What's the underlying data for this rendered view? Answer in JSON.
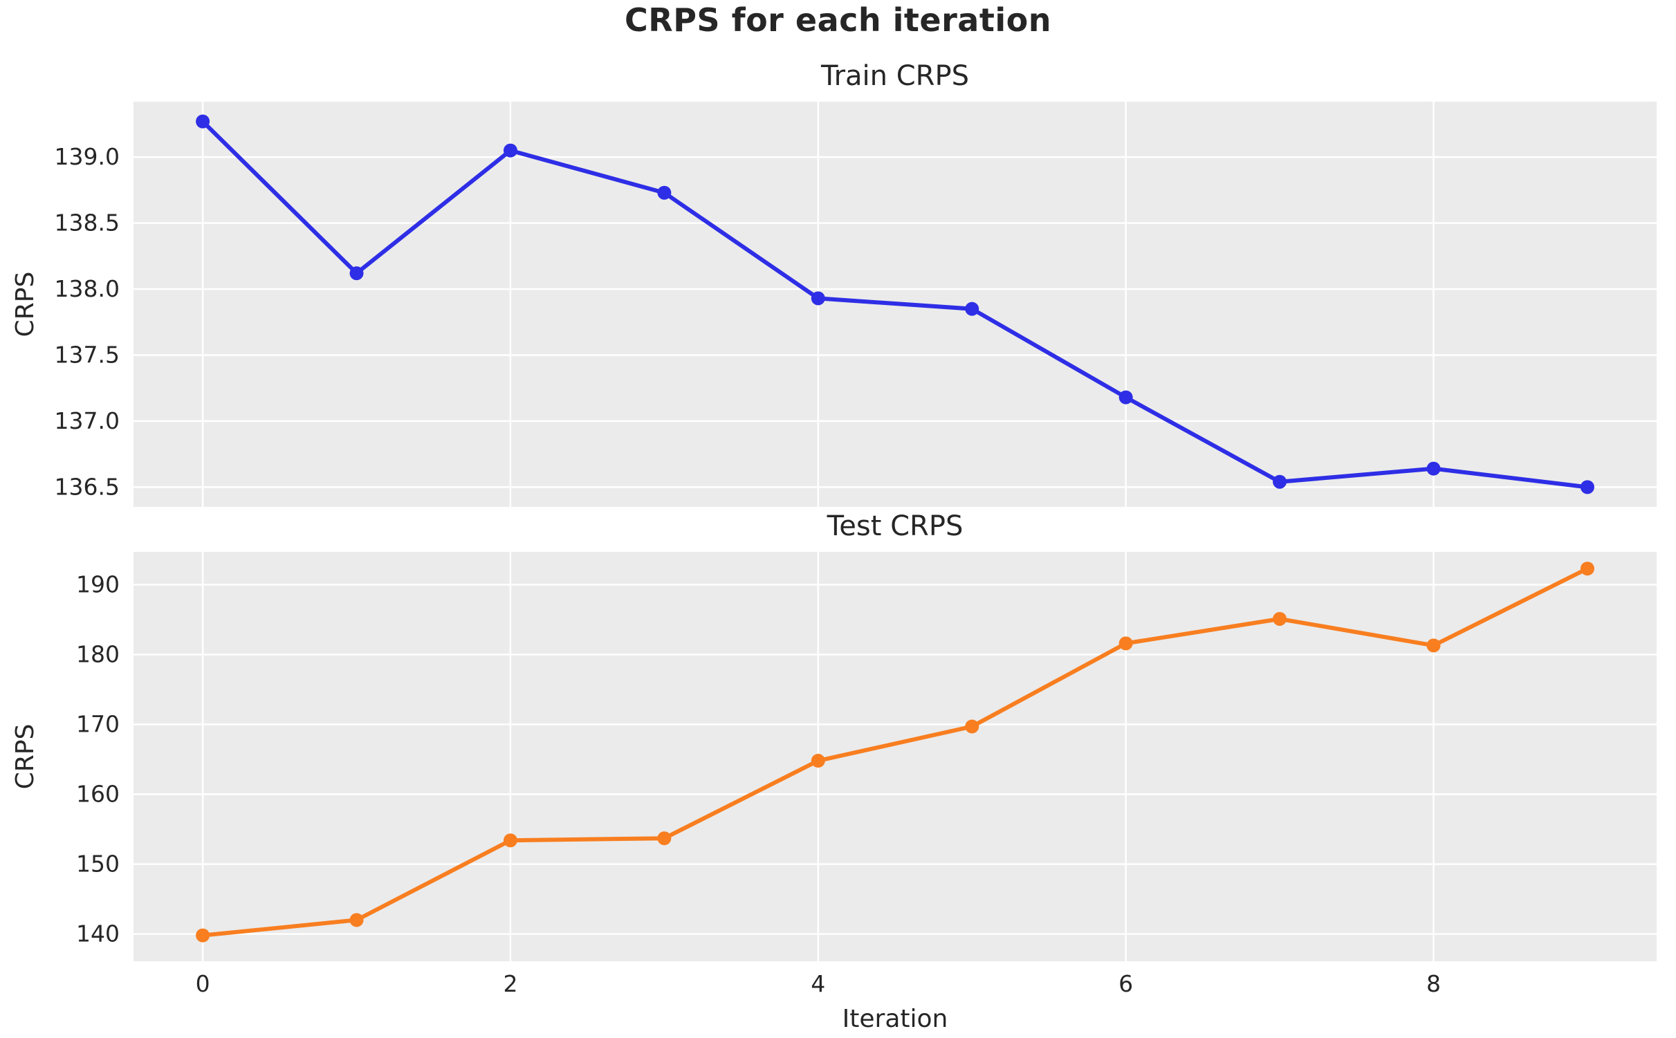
{
  "figure": {
    "suptitle": "CRPS for each iteration",
    "background": "#ffffff",
    "axes_background": "#ebebeb",
    "grid_color": "#ffffff",
    "text_color": "#262626"
  },
  "chart_data": [
    {
      "type": "line",
      "title": "Train CRPS",
      "ylabel": "CRPS",
      "xlabel": "",
      "grid": true,
      "legend_position": "none",
      "x": [
        0,
        1,
        2,
        3,
        4,
        5,
        6,
        7,
        8,
        9
      ],
      "series": [
        {
          "name": "Train CRPS",
          "color": "#2e2ee6",
          "marker": "circle",
          "values": [
            139.27,
            138.12,
            139.05,
            138.73,
            137.93,
            137.85,
            137.18,
            136.54,
            136.64,
            136.5
          ]
        }
      ],
      "xticks": [
        0,
        2,
        4,
        6,
        8
      ],
      "xtick_labels": [],
      "yticks": [
        139.0,
        138.5,
        138.0,
        137.5,
        137.0,
        136.5
      ],
      "ytick_labels": [
        "139.0",
        "138.5",
        "138.0",
        "137.5",
        "137.0",
        "136.5"
      ],
      "xlim": [
        -0.45,
        9.45
      ],
      "ylim": [
        136.35,
        139.42
      ]
    },
    {
      "type": "line",
      "title": "Test CRPS",
      "ylabel": "CRPS",
      "xlabel": "Iteration",
      "grid": true,
      "legend_position": "none",
      "x": [
        0,
        1,
        2,
        3,
        4,
        5,
        6,
        7,
        8,
        9
      ],
      "series": [
        {
          "name": "Test CRPS",
          "color": "#f87e20",
          "marker": "circle",
          "values": [
            139.8,
            142.0,
            153.4,
            153.7,
            164.8,
            169.7,
            181.6,
            185.1,
            181.3,
            192.3
          ]
        }
      ],
      "xticks": [
        0,
        2,
        4,
        6,
        8
      ],
      "xtick_labels": [
        "0",
        "2",
        "4",
        "6",
        "8"
      ],
      "yticks": [
        190,
        180,
        170,
        160,
        150,
        140
      ],
      "ytick_labels": [
        "190",
        "180",
        "170",
        "160",
        "150",
        "140"
      ],
      "xlim": [
        -0.45,
        9.45
      ],
      "ylim": [
        136.1,
        194.7
      ]
    }
  ]
}
